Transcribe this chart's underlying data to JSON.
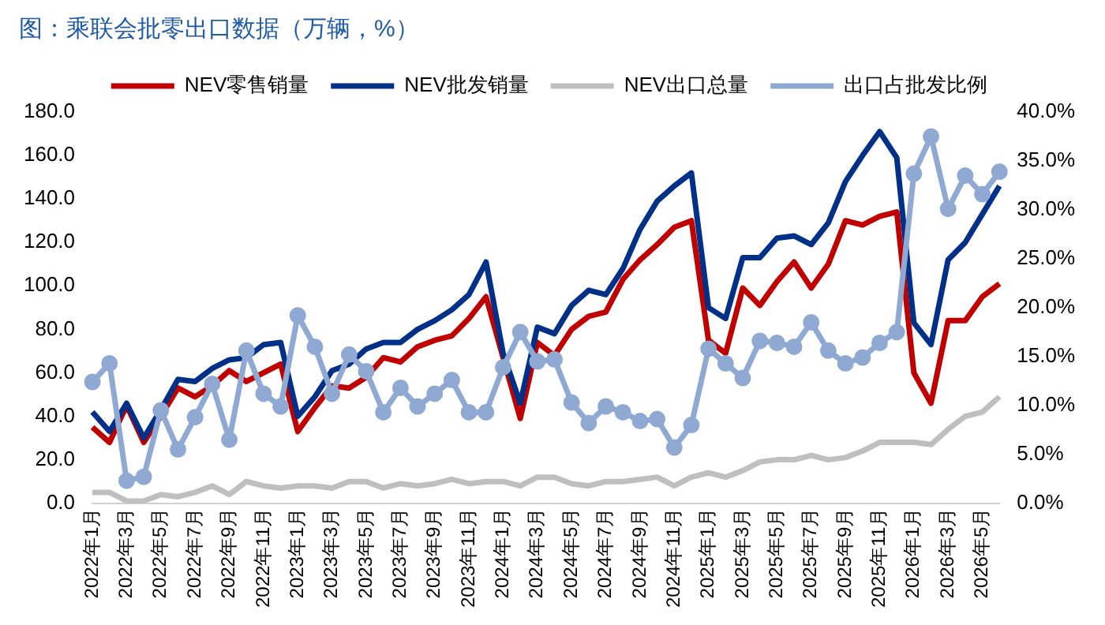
{
  "chart_data": {
    "type": "line",
    "title": "图：乘联会批零出口数据（万辆，%）",
    "categories": [
      "2022年1月",
      null,
      "2022年3月",
      null,
      "2022年5月",
      null,
      "2022年7月",
      null,
      "2022年9月",
      null,
      "2022年11月",
      null,
      "2023年1月",
      null,
      "2023年3月",
      null,
      "2023年5月",
      null,
      "2023年7月",
      null,
      "2023年9月",
      null,
      "2023年11月",
      null,
      "2024年1月",
      null,
      "2024年3月",
      null,
      "2024年5月",
      null,
      "2024年7月",
      null,
      "2024年9月",
      null,
      "2024年11月",
      null,
      "2025年1月",
      null,
      "2025年3月",
      null,
      "2025年5月",
      null,
      "2025年7月",
      null,
      "2025年9月",
      null,
      "2025年11月",
      null,
      "2026年1月",
      null,
      "2026年3月",
      null,
      "2026年5月",
      null
    ],
    "series": [
      {
        "name": "NEV零售销量",
        "color": "#c00000",
        "marker": "none",
        "values": [
          35,
          28,
          45,
          28,
          40,
          53,
          49,
          54,
          61,
          56,
          60,
          64,
          33,
          44,
          54,
          53,
          58,
          67,
          65,
          72,
          75,
          77,
          85,
          95,
          67,
          39,
          74,
          68,
          80,
          86,
          88,
          103,
          112,
          119,
          127,
          130,
          75,
          69,
          99,
          91,
          102,
          111,
          99,
          110,
          130,
          128,
          132,
          134,
          60,
          46,
          84,
          84,
          95,
          101
        ]
      },
      {
        "name": "NEV批发销量",
        "color": "#003087",
        "marker": "none",
        "values": [
          42,
          33,
          46,
          30,
          43,
          57,
          56,
          62,
          66,
          67,
          73,
          74,
          40,
          49,
          61,
          64,
          71,
          74,
          74,
          80,
          84,
          89,
          96,
          111,
          69,
          46,
          81,
          78,
          91,
          98,
          96,
          108,
          126,
          139,
          146,
          152,
          90,
          85,
          113,
          113,
          122,
          123,
          119,
          129,
          148,
          160,
          171,
          159,
          83,
          73,
          112,
          120,
          133,
          146
        ]
      },
      {
        "name": "NEV出口总量",
        "color": "#bfbfbf",
        "marker": "none",
        "values": [
          5,
          5,
          1,
          1,
          4,
          3,
          5,
          8,
          4,
          10,
          8,
          7,
          8,
          8,
          7,
          10,
          10,
          7,
          9,
          8,
          9,
          11,
          9,
          10,
          10,
          8,
          12,
          12,
          9,
          8,
          10,
          10,
          11,
          12,
          8,
          12,
          14,
          12,
          15,
          19,
          20,
          20,
          22,
          20,
          21,
          24,
          28,
          28,
          28,
          27,
          34,
          40,
          42,
          49
        ]
      },
      {
        "name": "出口占批发比例",
        "color": "#8fa9d3",
        "marker": "circle",
        "axis": "y2",
        "values": [
          12.4,
          14.3,
          2.3,
          2.7,
          9.5,
          5.5,
          8.8,
          12.2,
          6.5,
          15.6,
          11.2,
          9.9,
          19.2,
          16.0,
          11.2,
          15.2,
          13.5,
          9.3,
          11.8,
          9.9,
          11.2,
          12.6,
          9.3,
          9.3,
          13.9,
          17.5,
          14.5,
          14.7,
          10.3,
          8.2,
          9.9,
          9.3,
          8.4,
          8.6,
          5.7,
          8.0,
          15.8,
          14.3,
          12.8,
          16.6,
          16.4,
          16.0,
          18.5,
          15.6,
          14.3,
          14.9,
          16.4,
          17.5,
          33.7,
          37.5,
          30.1,
          33.5,
          31.6,
          33.9
        ]
      }
    ],
    "ylim": [
      0,
      180
    ],
    "yticks": [
      {
        "value": 0,
        "label": "0.0"
      },
      {
        "value": 20,
        "label": "20.0"
      },
      {
        "value": 40,
        "label": "40.0"
      },
      {
        "value": 60,
        "label": "60.0"
      },
      {
        "value": 80,
        "label": "80.0"
      },
      {
        "value": 100,
        "label": "100.0"
      },
      {
        "value": 120,
        "label": "120.0"
      },
      {
        "value": 140,
        "label": "140.0"
      },
      {
        "value": 160,
        "label": "160.0"
      },
      {
        "value": 180,
        "label": "180.0"
      }
    ],
    "y2lim": [
      0,
      40
    ],
    "y2ticks": [
      {
        "value": 0,
        "label": "0.0%"
      },
      {
        "value": 5,
        "label": "5.0%"
      },
      {
        "value": 10,
        "label": "10.0%"
      },
      {
        "value": 15,
        "label": "15.0%"
      },
      {
        "value": 20,
        "label": "20.0%"
      },
      {
        "value": 25,
        "label": "25.0%"
      },
      {
        "value": 30,
        "label": "30.0%"
      },
      {
        "value": 35,
        "label": "35.0%"
      },
      {
        "value": 40,
        "label": "40.0%"
      }
    ],
    "grid": false,
    "legend": "top"
  }
}
